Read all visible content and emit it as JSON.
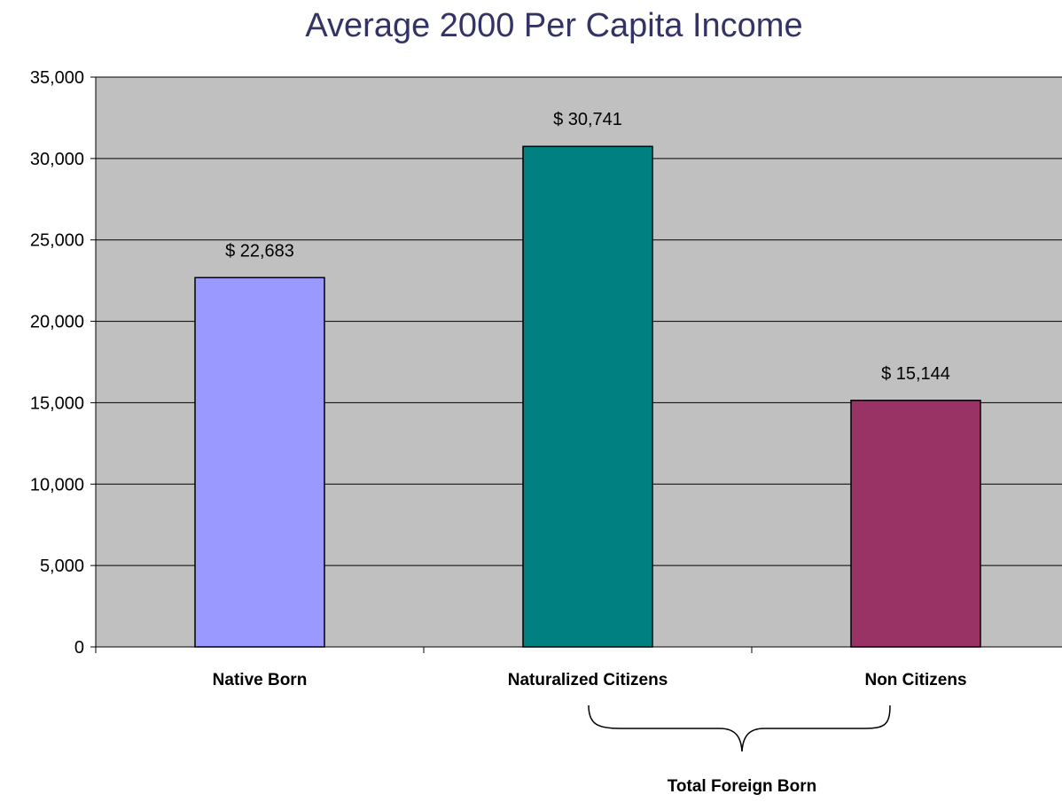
{
  "chart_data": {
    "type": "bar",
    "title": "Average 2000 Per Capita Income",
    "categories": [
      "Native Born",
      "Naturalized Citizens",
      "Non Citizens"
    ],
    "values": [
      22683,
      30741,
      15144
    ],
    "data_labels": [
      "$ 22,683",
      "$ 30,741",
      "$ 15,144"
    ],
    "colors": [
      "#9999ff",
      "#008080",
      "#993366"
    ],
    "ylim": [
      0,
      35000
    ],
    "yticks": [
      0,
      5000,
      10000,
      15000,
      20000,
      25000,
      30000,
      35000
    ],
    "ytick_labels": [
      "0",
      "5,000",
      "10,000",
      "15,000",
      "20,000",
      "25,000",
      "30,000",
      "35,000"
    ],
    "grid": true,
    "plot_background": "#c0c0c0",
    "group_annotation": {
      "label": "Total Foreign Born",
      "categories": [
        "Naturalized Citizens",
        "Non Citizens"
      ]
    }
  }
}
